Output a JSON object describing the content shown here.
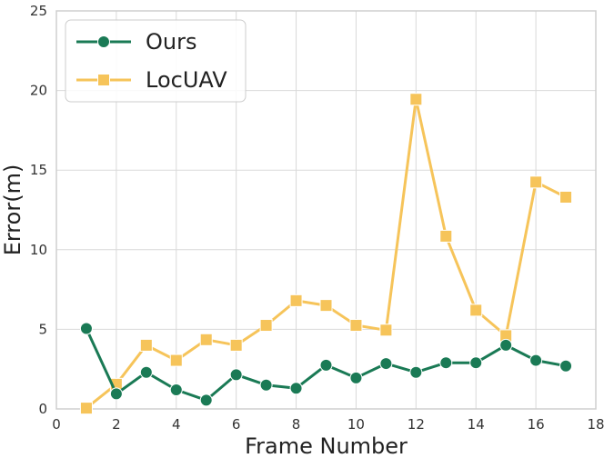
{
  "chart_data": {
    "type": "line",
    "title": "",
    "xlabel": "Frame Number",
    "ylabel": "Error(m)",
    "xlim": [
      0,
      18
    ],
    "ylim": [
      0,
      25
    ],
    "xticks": [
      0,
      2,
      4,
      6,
      8,
      10,
      12,
      14,
      16,
      18
    ],
    "yticks": [
      0,
      5,
      10,
      15,
      20,
      25
    ],
    "grid": true,
    "legend_position": "top-left",
    "x": [
      1,
      2,
      3,
      4,
      5,
      6,
      7,
      8,
      9,
      10,
      11,
      12,
      13,
      14,
      15,
      16,
      17
    ],
    "series": [
      {
        "name": "Ours",
        "color": "#1a7a55",
        "marker": "circle",
        "values": [
          5.05,
          0.95,
          2.3,
          1.2,
          0.55,
          2.15,
          1.5,
          1.3,
          2.75,
          1.95,
          2.85,
          2.3,
          2.9,
          2.9,
          4.0,
          3.05,
          2.7
        ]
      },
      {
        "name": "LocUAV",
        "color": "#f6c45a",
        "marker": "square",
        "values": [
          0.05,
          1.55,
          4.0,
          3.05,
          4.35,
          4.0,
          5.25,
          6.8,
          6.5,
          5.25,
          4.95,
          19.45,
          10.85,
          6.2,
          4.6,
          14.25,
          13.3
        ]
      }
    ]
  }
}
